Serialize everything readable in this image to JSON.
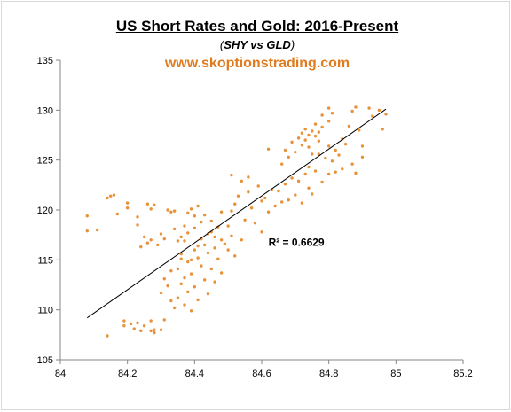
{
  "title": "US Short Rates and Gold: 2016-Present",
  "subtitle": {
    "open": "(",
    "emph": "SHY vs GLD",
    "close": ")"
  },
  "website": "www.skoptionstrading.com",
  "colors": {
    "points": "#e8923a",
    "trendline": "#000000",
    "website": "#e07b1f"
  },
  "chart_data": {
    "type": "scatter",
    "title": "US Short Rates and Gold: 2016-Present",
    "xlabel": "",
    "ylabel": "",
    "xlim": [
      84,
      85.2
    ],
    "ylim": [
      105,
      135
    ],
    "x_ticks": [
      84,
      84.2,
      84.4,
      84.6,
      84.8,
      85,
      85.2
    ],
    "y_ticks": [
      105,
      110,
      115,
      120,
      125,
      130,
      135
    ],
    "x_tick_labels": [
      "84",
      "84.2",
      "84.4",
      "84.6",
      "84.8",
      "85",
      "85.2"
    ],
    "y_tick_labels": [
      "105",
      "110",
      "115",
      "120",
      "125",
      "130",
      "135"
    ],
    "grid": false,
    "trendline": {
      "x": [
        84.08,
        84.97
      ],
      "y": [
        109.2,
        130.1
      ]
    },
    "annotation": "R² = 0.6629",
    "points": [
      [
        84.08,
        119.4
      ],
      [
        84.08,
        117.9
      ],
      [
        84.11,
        118.0
      ],
      [
        84.14,
        121.2
      ],
      [
        84.15,
        121.4
      ],
      [
        84.16,
        121.5
      ],
      [
        84.17,
        119.6
      ],
      [
        84.14,
        107.4
      ],
      [
        84.19,
        108.4
      ],
      [
        84.19,
        108.9
      ],
      [
        84.21,
        108.6
      ],
      [
        84.22,
        108.1
      ],
      [
        84.23,
        108.7
      ],
      [
        84.24,
        107.9
      ],
      [
        84.25,
        108.4
      ],
      [
        84.27,
        108.9
      ],
      [
        84.27,
        107.9
      ],
      [
        84.28,
        107.7
      ],
      [
        84.28,
        108.0
      ],
      [
        84.3,
        108.0
      ],
      [
        84.31,
        109.0
      ],
      [
        84.2,
        120.7
      ],
      [
        84.2,
        120.2
      ],
      [
        84.23,
        119.3
      ],
      [
        84.23,
        118.5
      ],
      [
        84.24,
        116.3
      ],
      [
        84.25,
        117.3
      ],
      [
        84.26,
        116.7
      ],
      [
        84.26,
        120.6
      ],
      [
        84.27,
        120.1
      ],
      [
        84.27,
        117.0
      ],
      [
        84.28,
        120.5
      ],
      [
        84.29,
        116.5
      ],
      [
        84.3,
        117.6
      ],
      [
        84.31,
        117.1
      ],
      [
        84.32,
        120.0
      ],
      [
        84.33,
        119.8
      ],
      [
        84.34,
        118.1
      ],
      [
        84.34,
        119.9
      ],
      [
        84.35,
        116.9
      ],
      [
        84.36,
        117.3
      ],
      [
        84.37,
        118.4
      ],
      [
        84.38,
        119.7
      ],
      [
        84.39,
        120.1
      ],
      [
        84.4,
        119.4
      ],
      [
        84.41,
        120.4
      ],
      [
        84.3,
        111.7
      ],
      [
        84.31,
        113.1
      ],
      [
        84.32,
        112.4
      ],
      [
        84.33,
        113.9
      ],
      [
        84.33,
        110.9
      ],
      [
        84.34,
        110.2
      ],
      [
        84.35,
        111.2
      ],
      [
        84.35,
        114.1
      ],
      [
        84.36,
        112.6
      ],
      [
        84.36,
        115.6
      ],
      [
        84.37,
        110.5
      ],
      [
        84.37,
        113.2
      ],
      [
        84.38,
        111.8
      ],
      [
        84.38,
        114.8
      ],
      [
        84.39,
        109.9
      ],
      [
        84.39,
        113.6
      ],
      [
        84.4,
        112.3
      ],
      [
        84.4,
        116.0
      ],
      [
        84.41,
        115.2
      ],
      [
        84.41,
        111.0
      ],
      [
        84.42,
        114.4
      ],
      [
        84.42,
        117.1
      ],
      [
        84.43,
        113.0
      ],
      [
        84.43,
        116.5
      ],
      [
        84.44,
        111.6
      ],
      [
        84.44,
        115.7
      ],
      [
        84.45,
        117.8
      ],
      [
        84.45,
        114.1
      ],
      [
        84.46,
        116.2
      ],
      [
        84.46,
        112.8
      ],
      [
        84.47,
        118.3
      ],
      [
        84.47,
        115.1
      ],
      [
        84.48,
        117.0
      ],
      [
        84.48,
        113.7
      ],
      [
        84.49,
        116.6
      ],
      [
        84.36,
        115.1
      ],
      [
        84.37,
        116.9
      ],
      [
        84.38,
        117.7
      ],
      [
        84.39,
        115.0
      ],
      [
        84.4,
        118.2
      ],
      [
        84.41,
        116.4
      ],
      [
        84.42,
        118.8
      ],
      [
        84.43,
        119.5
      ],
      [
        84.44,
        117.6
      ],
      [
        84.45,
        118.9
      ],
      [
        84.46,
        117.3
      ],
      [
        84.48,
        119.8
      ],
      [
        84.5,
        116.0
      ],
      [
        84.5,
        118.4
      ],
      [
        84.51,
        117.4
      ],
      [
        84.51,
        119.9
      ],
      [
        84.52,
        120.6
      ],
      [
        84.52,
        115.4
      ],
      [
        84.53,
        121.4
      ],
      [
        84.54,
        117.0
      ],
      [
        84.55,
        119.0
      ],
      [
        84.56,
        121.8
      ],
      [
        84.57,
        120.2
      ],
      [
        84.58,
        118.7
      ],
      [
        84.59,
        122.4
      ],
      [
        84.6,
        120.9
      ],
      [
        84.51,
        123.5
      ],
      [
        84.54,
        122.9
      ],
      [
        84.56,
        123.3
      ],
      [
        84.6,
        117.8
      ],
      [
        84.62,
        126.1
      ],
      [
        84.61,
        121.2
      ],
      [
        84.62,
        119.8
      ],
      [
        84.63,
        122.0
      ],
      [
        84.64,
        120.4
      ],
      [
        84.65,
        121.9
      ],
      [
        84.66,
        120.8
      ],
      [
        84.67,
        122.6
      ],
      [
        84.68,
        121.0
      ],
      [
        84.69,
        123.2
      ],
      [
        84.7,
        121.5
      ],
      [
        84.71,
        122.9
      ],
      [
        84.72,
        120.7
      ],
      [
        84.73,
        123.6
      ],
      [
        84.74,
        122.2
      ],
      [
        84.75,
        121.6
      ],
      [
        84.76,
        123.9
      ],
      [
        84.78,
        122.8
      ],
      [
        84.8,
        123.6
      ],
      [
        84.66,
        124.6
      ],
      [
        84.67,
        126.0
      ],
      [
        84.68,
        125.3
      ],
      [
        84.69,
        126.8
      ],
      [
        84.7,
        125.8
      ],
      [
        84.71,
        127.2
      ],
      [
        84.72,
        126.5
      ],
      [
        84.72,
        127.7
      ],
      [
        84.73,
        127.0
      ],
      [
        84.73,
        128.1
      ],
      [
        84.74,
        127.5
      ],
      [
        84.74,
        126.3
      ],
      [
        84.75,
        127.9
      ],
      [
        84.75,
        125.6
      ],
      [
        84.76,
        127.4
      ],
      [
        84.76,
        128.6
      ],
      [
        84.77,
        126.9
      ],
      [
        84.77,
        127.8
      ],
      [
        84.78,
        128.3
      ],
      [
        84.79,
        125.2
      ],
      [
        84.8,
        126.4
      ],
      [
        84.8,
        128.9
      ],
      [
        84.81,
        129.7
      ],
      [
        84.81,
        124.9
      ],
      [
        84.82,
        126.0
      ],
      [
        84.83,
        125.5
      ],
      [
        84.84,
        127.1
      ],
      [
        84.85,
        126.6
      ],
      [
        84.86,
        128.4
      ],
      [
        84.87,
        129.9
      ],
      [
        84.88,
        130.3
      ],
      [
        84.89,
        128.0
      ],
      [
        84.9,
        126.4
      ],
      [
        84.9,
        125.3
      ],
      [
        84.92,
        130.2
      ],
      [
        84.93,
        129.4
      ],
      [
        84.95,
        130.0
      ],
      [
        84.97,
        129.6
      ],
      [
        84.96,
        128.1
      ],
      [
        84.8,
        130.2
      ],
      [
        84.78,
        129.5
      ],
      [
        84.84,
        124.1
      ],
      [
        84.87,
        124.6
      ],
      [
        84.88,
        123.7
      ],
      [
        84.82,
        123.8
      ],
      [
        84.77,
        125.6
      ],
      [
        84.74,
        124.3
      ]
    ]
  }
}
